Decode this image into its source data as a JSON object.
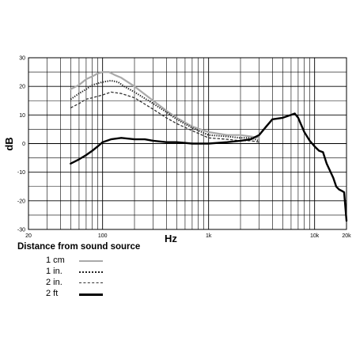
{
  "chart_data": {
    "type": "line",
    "xscale": "log",
    "xlim": [
      20,
      20000
    ],
    "ylim": [
      -30,
      30
    ],
    "grid": true,
    "xlabel": "Hz",
    "ylabel": "dB",
    "x_ticks": [
      {
        "value": 20,
        "label": "20"
      },
      {
        "value": 100,
        "label": "100"
      },
      {
        "value": 1000,
        "label": "1k"
      },
      {
        "value": 10000,
        "label": "10k"
      },
      {
        "value": 20000,
        "label": "20k"
      }
    ],
    "y_ticks": [
      {
        "value": 30,
        "label": "30"
      },
      {
        "value": 20,
        "label": "20"
      },
      {
        "value": 10,
        "label": "10"
      },
      {
        "value": 0,
        "label": "0"
      },
      {
        "value": -10,
        "label": "-10"
      },
      {
        "value": -20,
        "label": "-20"
      },
      {
        "value": -30,
        "label": "-30"
      }
    ],
    "legend_title": "Distance from sound source",
    "series": [
      {
        "name": "1 cm",
        "color": "#aaaaaa",
        "style": "solid",
        "points": [
          [
            50,
            19
          ],
          [
            60,
            20.5
          ],
          [
            70,
            22.5
          ],
          [
            80,
            23.5
          ],
          [
            90,
            24.5
          ],
          [
            100,
            25
          ],
          [
            115,
            25
          ],
          [
            130,
            24
          ],
          [
            150,
            23
          ],
          [
            200,
            20
          ],
          [
            300,
            15
          ],
          [
            400,
            11.5
          ],
          [
            500,
            9
          ],
          [
            700,
            6
          ],
          [
            1000,
            4
          ],
          [
            1500,
            3
          ],
          [
            2000,
            3
          ],
          [
            2500,
            2.5
          ],
          [
            3000,
            2
          ]
        ]
      },
      {
        "name": "1 in.",
        "color": "#222222",
        "style": "dotted",
        "points": [
          [
            50,
            15.5
          ],
          [
            60,
            17.5
          ],
          [
            70,
            19
          ],
          [
            80,
            20.5
          ],
          [
            100,
            21.5
          ],
          [
            120,
            22
          ],
          [
            140,
            21.5
          ],
          [
            160,
            20
          ],
          [
            200,
            18
          ],
          [
            300,
            14
          ],
          [
            400,
            11
          ],
          [
            500,
            8.5
          ],
          [
            700,
            5.5
          ],
          [
            1000,
            3
          ],
          [
            1500,
            2.5
          ],
          [
            2000,
            2
          ],
          [
            2500,
            2
          ],
          [
            3000,
            1
          ]
        ]
      },
      {
        "name": "2 in.",
        "color": "#333333",
        "style": "dashed",
        "points": [
          [
            50,
            12.5
          ],
          [
            60,
            14
          ],
          [
            70,
            15.5
          ],
          [
            80,
            16
          ],
          [
            100,
            17
          ],
          [
            120,
            18
          ],
          [
            150,
            17.5
          ],
          [
            200,
            16
          ],
          [
            300,
            12
          ],
          [
            400,
            9
          ],
          [
            500,
            7
          ],
          [
            700,
            4.5
          ],
          [
            1000,
            2
          ],
          [
            1500,
            1.5
          ],
          [
            2000,
            1
          ],
          [
            2500,
            1
          ],
          [
            3000,
            0.5
          ]
        ]
      },
      {
        "name": "2 ft",
        "color": "#000000",
        "style": "thick",
        "points": [
          [
            50,
            -7
          ],
          [
            60,
            -5.5
          ],
          [
            70,
            -4
          ],
          [
            80,
            -2.5
          ],
          [
            90,
            -1
          ],
          [
            100,
            0.5
          ],
          [
            120,
            1.5
          ],
          [
            150,
            2
          ],
          [
            200,
            1.5
          ],
          [
            250,
            1.5
          ],
          [
            300,
            1
          ],
          [
            400,
            0.5
          ],
          [
            500,
            0.5
          ],
          [
            700,
            0
          ],
          [
            1000,
            0
          ],
          [
            1500,
            0.5
          ],
          [
            2000,
            1
          ],
          [
            2500,
            1.5
          ],
          [
            3000,
            3
          ],
          [
            3500,
            6
          ],
          [
            4000,
            8.5
          ],
          [
            5000,
            9
          ],
          [
            6000,
            10
          ],
          [
            6500,
            10.5
          ],
          [
            7000,
            9
          ],
          [
            8000,
            4
          ],
          [
            9000,
            1
          ],
          [
            10000,
            -1
          ],
          [
            11000,
            -2.5
          ],
          [
            12000,
            -3
          ],
          [
            13000,
            -7
          ],
          [
            15000,
            -12
          ],
          [
            16000,
            -15
          ],
          [
            17000,
            -16
          ],
          [
            18000,
            -16.5
          ],
          [
            19000,
            -17
          ],
          [
            20000,
            -27
          ]
        ]
      }
    ]
  }
}
